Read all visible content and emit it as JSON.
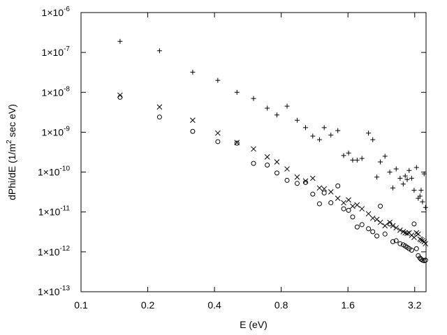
{
  "chart_data": {
    "type": "scatter",
    "title": "",
    "xlabel": "E (eV)",
    "ylabel": "dPhi/dE  (1/m",
    "ylabel_sup": "2",
    "ylabel_tail": " sec eV)",
    "x_scale": "log2",
    "y_scale": "log10",
    "xlim": [
      0.1,
      3.6
    ],
    "ylim": [
      1e-13,
      1e-06
    ],
    "x_ticks": [
      {
        "value": 0.1,
        "label": "0.1"
      },
      {
        "value": 0.2,
        "label": "0.2"
      },
      {
        "value": 0.4,
        "label": "0.4"
      },
      {
        "value": 0.8,
        "label": "0.8"
      },
      {
        "value": 1.6,
        "label": "1.6"
      },
      {
        "value": 3.2,
        "label": "3.2"
      }
    ],
    "y_ticks": [
      {
        "value": 1e-13,
        "mantissa": "1×10",
        "exp": "-13"
      },
      {
        "value": 1e-12,
        "mantissa": "1×10",
        "exp": "-12"
      },
      {
        "value": 1e-11,
        "mantissa": "1×10",
        "exp": "-11"
      },
      {
        "value": 1e-10,
        "mantissa": "1×10",
        "exp": "-10"
      },
      {
        "value": 1e-09,
        "mantissa": "1×10",
        "exp": "-9"
      },
      {
        "value": 1e-08,
        "mantissa": "1×10",
        "exp": "-8"
      },
      {
        "value": 1e-07,
        "mantissa": "1×10",
        "exp": "-7"
      },
      {
        "value": 1e-06,
        "mantissa": "1×10",
        "exp": "-6"
      }
    ],
    "grid": false,
    "legend": "none",
    "series": [
      {
        "marker": "plus",
        "points": [
          [
            0.15,
            1.9e-07
          ],
          [
            0.226,
            1.1e-07
          ],
          [
            0.319,
            3.2e-08
          ],
          [
            0.414,
            2e-08
          ],
          [
            0.505,
            1e-08
          ],
          [
            0.6,
            7e-09
          ],
          [
            0.692,
            4e-09
          ],
          [
            0.765,
            2.7e-09
          ],
          [
            0.85,
            4.5e-09
          ],
          [
            0.944,
            2e-09
          ],
          [
            1.03,
            1.3e-09
          ],
          [
            1.11,
            8e-10
          ],
          [
            1.19,
            6.5e-10
          ],
          [
            1.25,
            1.3e-09
          ],
          [
            1.34,
            8.5e-10
          ],
          [
            1.44,
            1.1e-09
          ],
          [
            1.53,
            2.6e-10
          ],
          [
            1.61,
            3e-10
          ],
          [
            1.68,
            2e-10
          ],
          [
            1.76,
            2e-10
          ],
          [
            1.85,
            2.2e-10
          ],
          [
            1.98,
            9.5e-10
          ],
          [
            2.07,
            6.5e-10
          ],
          [
            2.16,
            7.5e-11
          ],
          [
            2.24,
            1.8e-10
          ],
          [
            2.35,
            2.5e-10
          ],
          [
            2.47,
            1e-10
          ],
          [
            2.55,
            4e-11
          ],
          [
            2.64,
            1.2e-10
          ],
          [
            2.75,
            7e-11
          ],
          [
            2.84,
            5e-11
          ],
          [
            2.9,
            8e-11
          ],
          [
            2.96,
            6.5e-11
          ],
          [
            3.02,
            1.1e-10
          ],
          [
            3.1,
            7e-11
          ],
          [
            3.18,
            3.5e-11
          ],
          [
            3.26,
            1.3e-10
          ],
          [
            3.32,
            2.2e-11
          ],
          [
            3.38,
            2.5e-11
          ],
          [
            3.42,
            3.5e-11
          ],
          [
            3.47,
            1.8e-11
          ],
          [
            3.53,
            9e-11
          ],
          [
            3.58,
            1.3e-11
          ]
        ]
      },
      {
        "marker": "cross",
        "points": [
          [
            0.15,
            8.5e-09
          ],
          [
            0.226,
            4.3e-09
          ],
          [
            0.319,
            2e-09
          ],
          [
            0.414,
            9.5e-10
          ],
          [
            0.505,
            5.5e-10
          ],
          [
            0.6,
            3.8e-10
          ],
          [
            0.692,
            2.4e-10
          ],
          [
            0.765,
            1.8e-10
          ],
          [
            0.85,
            1.2e-10
          ],
          [
            0.944,
            7.5e-11
          ],
          [
            1.03,
            6e-11
          ],
          [
            1.11,
            7e-11
          ],
          [
            1.19,
            4e-11
          ],
          [
            1.25,
            3.8e-11
          ],
          [
            1.34,
            3.2e-11
          ],
          [
            1.44,
            2.2e-11
          ],
          [
            1.53,
            1.7e-11
          ],
          [
            1.61,
            2e-11
          ],
          [
            1.68,
            1.4e-11
          ],
          [
            1.76,
            1.5e-11
          ],
          [
            1.85,
            1.2e-11
          ],
          [
            1.98,
            9e-12
          ],
          [
            2.07,
            7e-12
          ],
          [
            2.16,
            6.5e-12
          ],
          [
            2.24,
            5.5e-12
          ],
          [
            2.35,
            4.5e-12
          ],
          [
            2.47,
            5.5e-12
          ],
          [
            2.55,
            4.5e-12
          ],
          [
            2.64,
            4e-12
          ],
          [
            2.75,
            3.5e-12
          ],
          [
            2.84,
            3.2e-12
          ],
          [
            2.9,
            3e-12
          ],
          [
            2.96,
            2.9e-12
          ],
          [
            3.02,
            3e-12
          ],
          [
            3.1,
            2.6e-12
          ],
          [
            3.18,
            2.3e-12
          ],
          [
            3.26,
            3e-12
          ],
          [
            3.32,
            2.8e-12
          ],
          [
            3.38,
            2.1e-12
          ],
          [
            3.42,
            2e-12
          ],
          [
            3.47,
            1.9e-12
          ],
          [
            3.53,
            1.8e-12
          ],
          [
            3.58,
            1.6e-12
          ]
        ]
      },
      {
        "marker": "circle",
        "points": [
          [
            0.15,
            7.5e-09
          ],
          [
            0.226,
            2.4e-09
          ],
          [
            0.319,
            1.05e-09
          ],
          [
            0.414,
            5.8e-10
          ],
          [
            0.505,
            5.3e-10
          ],
          [
            0.6,
            1.65e-10
          ],
          [
            0.692,
            1.5e-10
          ],
          [
            0.765,
            9.5e-11
          ],
          [
            0.85,
            6.2e-11
          ],
          [
            0.944,
            5.2e-11
          ],
          [
            1.03,
            5.5e-11
          ],
          [
            1.11,
            2.8e-11
          ],
          [
            1.19,
            1.6e-11
          ],
          [
            1.25,
            3e-11
          ],
          [
            1.34,
            1.7e-11
          ],
          [
            1.44,
            4.5e-11
          ],
          [
            1.53,
            1.2e-11
          ],
          [
            1.61,
            1.1e-11
          ],
          [
            1.68,
            7.5e-12
          ],
          [
            1.76,
            4.2e-12
          ],
          [
            1.85,
            4.8e-12
          ],
          [
            1.98,
            3.8e-12
          ],
          [
            2.07,
            3.2e-12
          ],
          [
            2.16,
            2.5e-12
          ],
          [
            2.24,
            1.4e-11
          ],
          [
            2.35,
            2.8e-12
          ],
          [
            2.47,
            5e-12
          ],
          [
            2.55,
            1.8e-12
          ],
          [
            2.64,
            1.9e-12
          ],
          [
            2.75,
            1.6e-12
          ],
          [
            2.84,
            1.5e-12
          ],
          [
            2.9,
            1.4e-12
          ],
          [
            2.96,
            1.3e-12
          ],
          [
            3.02,
            1.2e-12
          ],
          [
            3.1,
            1.1e-12
          ],
          [
            3.18,
            5e-12
          ],
          [
            3.26,
            1.2e-12
          ],
          [
            3.32,
            8e-13
          ],
          [
            3.38,
            7e-13
          ],
          [
            3.42,
            6.5e-13
          ],
          [
            3.47,
            6.2e-13
          ],
          [
            3.53,
            6e-13
          ],
          [
            3.58,
            6.2e-13
          ]
        ]
      }
    ]
  }
}
